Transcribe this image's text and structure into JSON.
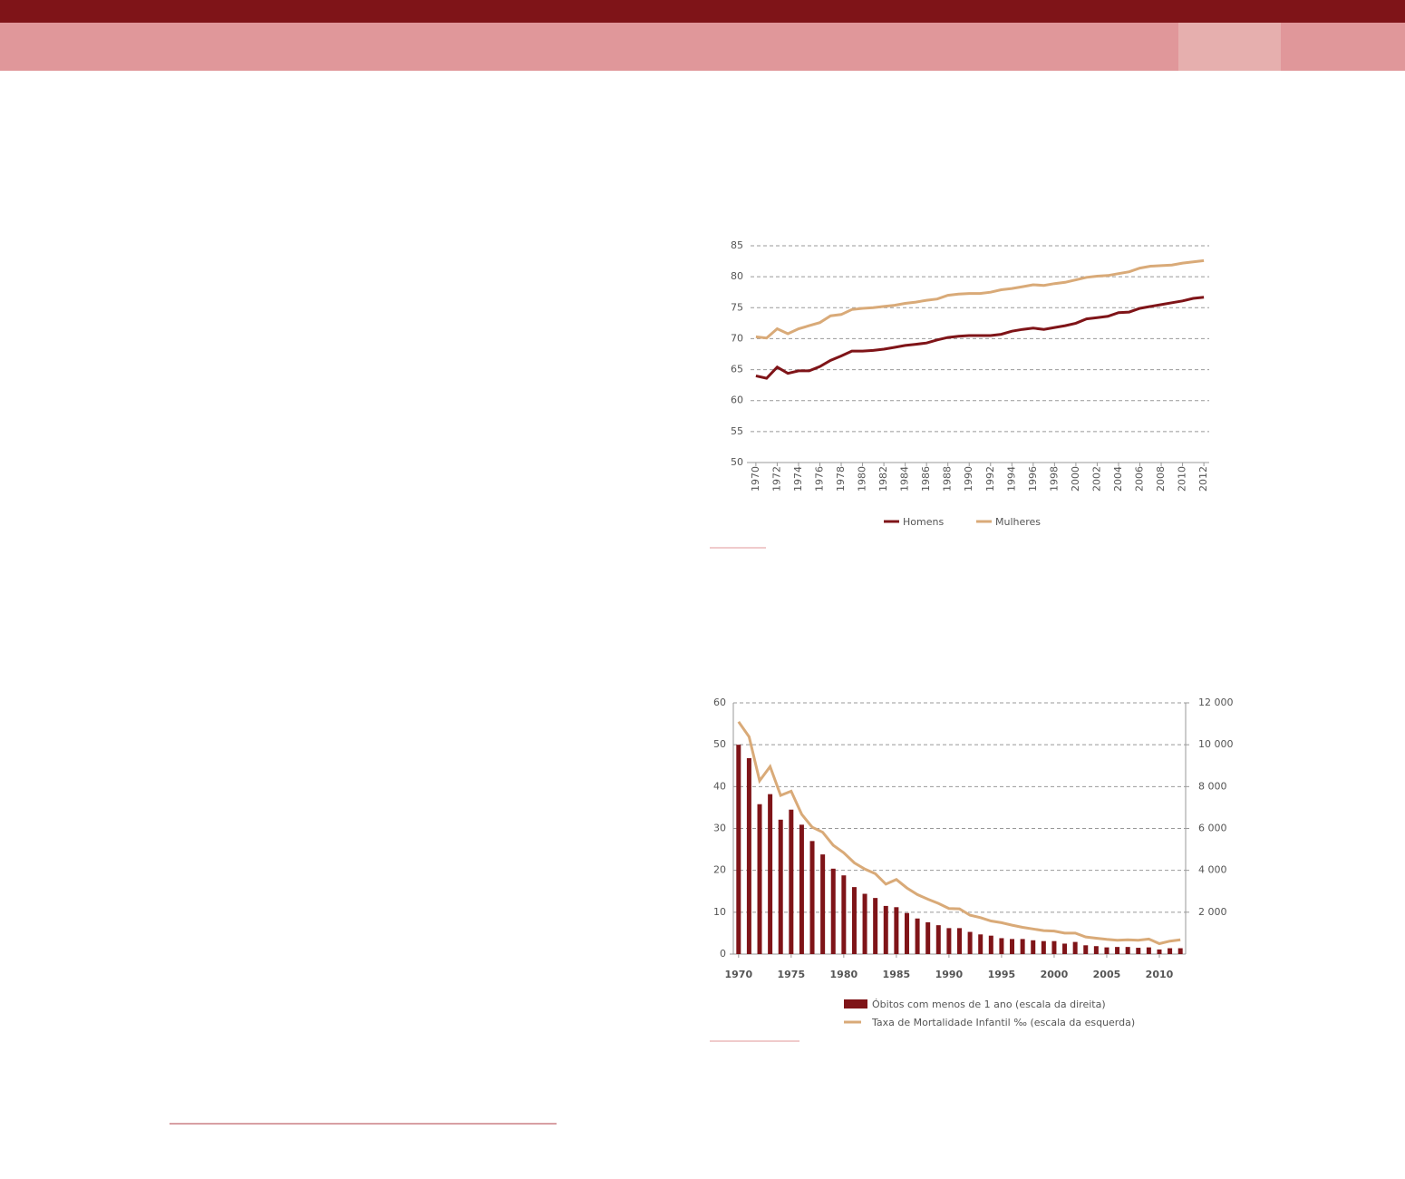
{
  "chart_data": [
    {
      "type": "line",
      "x": [
        1970,
        1971,
        1972,
        1973,
        1974,
        1975,
        1976,
        1977,
        1978,
        1979,
        1980,
        1981,
        1982,
        1983,
        1984,
        1985,
        1986,
        1987,
        1988,
        1989,
        1990,
        1991,
        1992,
        1993,
        1994,
        1995,
        1996,
        1997,
        1998,
        1999,
        2000,
        2001,
        2002,
        2003,
        2004,
        2005,
        2006,
        2007,
        2008,
        2009,
        2010,
        2011,
        2012
      ],
      "xticks": [
        1970,
        1972,
        1974,
        1976,
        1978,
        1980,
        1982,
        1984,
        1986,
        1988,
        1990,
        1992,
        1994,
        1996,
        1998,
        2000,
        2002,
        2004,
        2006,
        2008,
        2010,
        2012
      ],
      "ylim": [
        50,
        85
      ],
      "yticks": [
        50,
        55,
        60,
        65,
        70,
        75,
        80,
        85
      ],
      "grid": true,
      "series": [
        {
          "name": "Homens",
          "color": "#7f1418",
          "values": [
            64.0,
            63.6,
            65.4,
            64.4,
            64.8,
            64.8,
            65.5,
            66.5,
            67.2,
            68.0,
            68.0,
            68.1,
            68.3,
            68.6,
            68.9,
            69.1,
            69.3,
            69.8,
            70.2,
            70.4,
            70.5,
            70.5,
            70.5,
            70.7,
            71.2,
            71.5,
            71.7,
            71.5,
            71.8,
            72.1,
            72.5,
            73.2,
            73.4,
            73.6,
            74.2,
            74.3,
            74.9,
            75.2,
            75.5,
            75.8,
            76.1,
            76.5,
            76.7
          ]
        },
        {
          "name": "Mulheres",
          "color": "#d9aa78",
          "values": [
            70.3,
            70.1,
            71.6,
            70.8,
            71.6,
            72.1,
            72.6,
            73.7,
            73.9,
            74.7,
            74.9,
            75.0,
            75.2,
            75.4,
            75.7,
            75.9,
            76.2,
            76.4,
            77.0,
            77.2,
            77.3,
            77.3,
            77.5,
            77.9,
            78.1,
            78.4,
            78.7,
            78.6,
            78.9,
            79.1,
            79.5,
            79.9,
            80.1,
            80.2,
            80.5,
            80.8,
            81.4,
            81.7,
            81.8,
            81.9,
            82.2,
            82.4,
            82.6
          ]
        }
      ]
    },
    {
      "type": "combo",
      "x": [
        1970,
        1971,
        1972,
        1973,
        1974,
        1975,
        1976,
        1977,
        1978,
        1979,
        1980,
        1981,
        1982,
        1983,
        1984,
        1985,
        1986,
        1987,
        1988,
        1989,
        1990,
        1991,
        1992,
        1993,
        1994,
        1995,
        1996,
        1997,
        1998,
        1999,
        2000,
        2001,
        2002,
        2003,
        2004,
        2005,
        2006,
        2007,
        2008,
        2009,
        2010,
        2011,
        2012
      ],
      "xticks": [
        1970,
        1975,
        1980,
        1985,
        1990,
        1995,
        2000,
        2005,
        2010
      ],
      "ylim": [
        0,
        60
      ],
      "yticks": [
        0,
        10,
        20,
        30,
        40,
        50,
        60
      ],
      "grid": true,
      "y2lim": [
        0,
        12000
      ],
      "y2ticks": [
        {
          "value": 2000,
          "label": "2 000"
        },
        {
          "value": 4000,
          "label": "4 000"
        },
        {
          "value": 6000,
          "label": "6 000"
        },
        {
          "value": 8000,
          "label": "8 000"
        },
        {
          "value": 10000,
          "label": "10 000"
        },
        {
          "value": 12000,
          "label": "12 000"
        }
      ],
      "series": [
        {
          "name": "Óbitos com menos de 1 ano (escala da direita)",
          "type": "bar",
          "axis": "y2",
          "color": "#7f1418",
          "values": [
            10000,
            9360,
            7160,
            7640,
            6420,
            6900,
            6180,
            5400,
            4760,
            4080,
            3760,
            3200,
            2880,
            2680,
            2300,
            2240,
            1960,
            1700,
            1520,
            1380,
            1240,
            1240,
            1060,
            940,
            880,
            760,
            720,
            720,
            660,
            620,
            620,
            500,
            580,
            420,
            380,
            320,
            340,
            340,
            300,
            320,
            220,
            280,
            280
          ]
        },
        {
          "name": "Taxa de Mortalidade Infantil ‰ (escala da esquerda)",
          "type": "line",
          "color": "#d9aa78",
          "values": [
            55.5,
            51.9,
            41.4,
            44.8,
            37.9,
            38.9,
            33.4,
            30.3,
            29.1,
            26.0,
            24.2,
            21.8,
            20.3,
            19.2,
            16.7,
            17.8,
            15.8,
            14.2,
            13.1,
            12.1,
            10.9,
            10.8,
            9.3,
            8.7,
            7.9,
            7.5,
            6.9,
            6.4,
            6.0,
            5.6,
            5.5,
            5.0,
            5.0,
            4.1,
            3.8,
            3.5,
            3.3,
            3.4,
            3.3,
            3.6,
            2.5,
            3.1,
            3.4
          ]
        }
      ]
    }
  ]
}
